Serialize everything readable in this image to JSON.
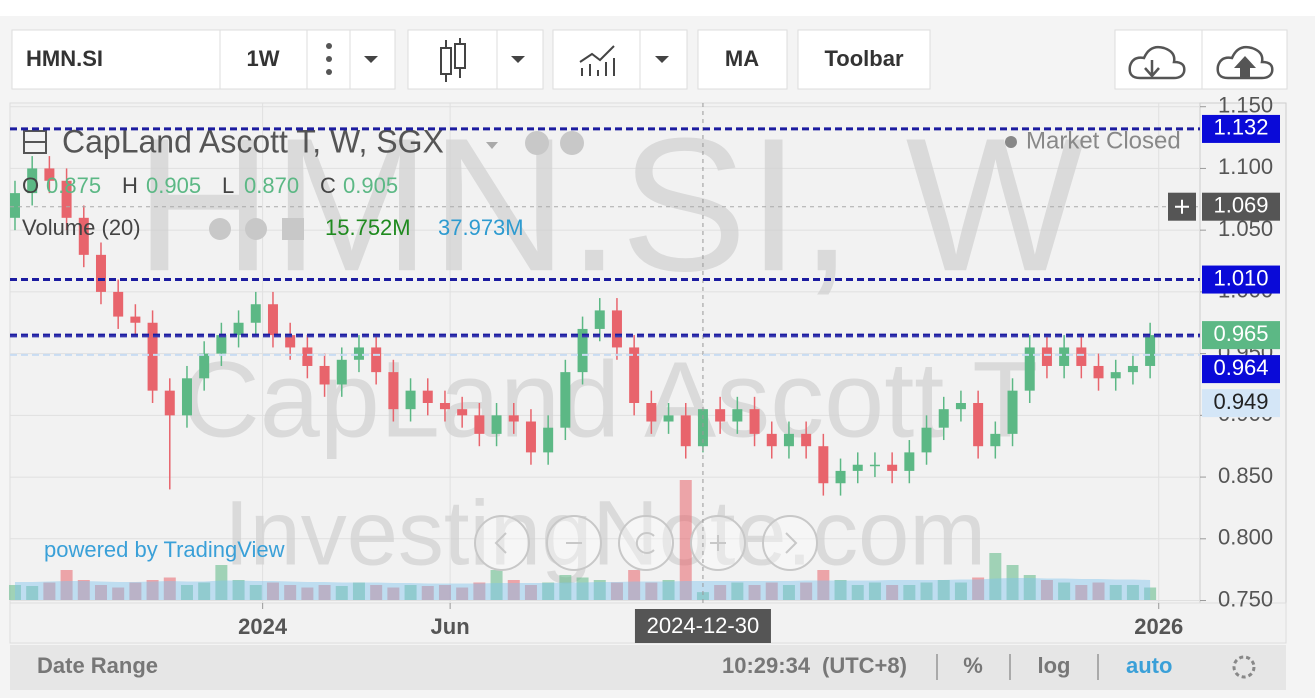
{
  "toolbar": {
    "symbol": "HMN.SI",
    "interval": "1W",
    "ma": "MA",
    "toolbar": "Toolbar"
  },
  "watermark": {
    "main": "HMN.SI, W",
    "name": "CapLand Ascott T",
    "site": "InvestingNote.com"
  },
  "legend": {
    "title": "CapLand Ascott T, W, SGX",
    "status": "Market Closed",
    "o_label": "O",
    "o": "0.875",
    "h_label": "H",
    "h": "0.905",
    "l_label": "L",
    "l": "0.870",
    "c_label": "C",
    "c": "0.905",
    "volume_label": "Volume (20)",
    "volume": "15.752M",
    "volume_ma": "37.973M"
  },
  "powered_by": "powered by TradingView",
  "footer": {
    "date_range": "Date Range",
    "time": "10:29:34",
    "timezone": "(UTC+8)",
    "percent": "%",
    "log": "log",
    "auto": "auto"
  },
  "chart_data": {
    "type": "candlestick",
    "up_color": "#5cb885",
    "down_color": "#e8646c",
    "open": [
      1.06,
      1.08,
      1.1,
      1.09,
      1.06,
      1.03,
      1.0,
      0.98,
      0.975,
      0.92,
      0.9,
      0.93,
      0.95,
      0.965,
      0.975,
      0.99,
      0.965,
      0.955,
      0.94,
      0.925,
      0.945,
      0.955,
      0.935,
      0.905,
      0.92,
      0.91,
      0.905,
      0.9,
      0.885,
      0.9,
      0.895,
      0.87,
      0.89,
      0.935,
      0.97,
      0.985,
      0.955,
      0.91,
      0.895,
      0.9,
      0.875,
      0.905,
      0.895,
      0.905,
      0.885,
      0.875,
      0.885,
      0.875,
      0.845,
      0.855,
      0.86,
      0.86,
      0.855,
      0.87,
      0.89,
      0.905,
      0.91,
      0.875,
      0.885,
      0.92,
      0.955,
      0.94,
      0.955,
      0.94,
      0.93,
      0.935,
      0.94
    ],
    "high": [
      1.09,
      1.11,
      1.11,
      1.1,
      1.07,
      1.04,
      1.01,
      0.99,
      0.985,
      0.93,
      0.94,
      0.96,
      0.975,
      0.985,
      1.0,
      1.0,
      0.975,
      0.965,
      0.95,
      0.955,
      0.965,
      0.965,
      0.945,
      0.93,
      0.93,
      0.92,
      0.915,
      0.91,
      0.91,
      0.91,
      0.905,
      0.9,
      0.945,
      0.98,
      0.995,
      0.995,
      0.965,
      0.92,
      0.91,
      0.91,
      0.905,
      0.915,
      0.915,
      0.915,
      0.895,
      0.895,
      0.895,
      0.885,
      0.865,
      0.87,
      0.87,
      0.87,
      0.88,
      0.9,
      0.915,
      0.92,
      0.92,
      0.895,
      0.93,
      0.965,
      0.965,
      0.965,
      0.965,
      0.95,
      0.945,
      0.95,
      0.975
    ],
    "low": [
      1.05,
      1.07,
      1.08,
      1.05,
      1.02,
      0.99,
      0.97,
      0.965,
      0.91,
      0.84,
      0.89,
      0.92,
      0.94,
      0.955,
      0.965,
      0.955,
      0.945,
      0.93,
      0.915,
      0.915,
      0.935,
      0.925,
      0.895,
      0.895,
      0.9,
      0.895,
      0.89,
      0.875,
      0.875,
      0.885,
      0.86,
      0.86,
      0.88,
      0.925,
      0.96,
      0.945,
      0.9,
      0.885,
      0.885,
      0.865,
      0.87,
      0.885,
      0.885,
      0.875,
      0.865,
      0.865,
      0.865,
      0.835,
      0.835,
      0.845,
      0.85,
      0.845,
      0.845,
      0.86,
      0.88,
      0.895,
      0.865,
      0.865,
      0.875,
      0.91,
      0.93,
      0.93,
      0.93,
      0.92,
      0.92,
      0.925,
      0.93
    ],
    "close": [
      1.08,
      1.1,
      1.09,
      1.06,
      1.03,
      1.0,
      0.98,
      0.975,
      0.92,
      0.9,
      0.93,
      0.95,
      0.965,
      0.975,
      0.99,
      0.965,
      0.955,
      0.94,
      0.925,
      0.945,
      0.955,
      0.935,
      0.905,
      0.92,
      0.91,
      0.905,
      0.9,
      0.885,
      0.9,
      0.895,
      0.87,
      0.89,
      0.935,
      0.97,
      0.985,
      0.955,
      0.91,
      0.895,
      0.9,
      0.875,
      0.905,
      0.895,
      0.905,
      0.885,
      0.875,
      0.885,
      0.875,
      0.845,
      0.855,
      0.86,
      0.86,
      0.855,
      0.87,
      0.89,
      0.905,
      0.91,
      0.875,
      0.885,
      0.92,
      0.955,
      0.94,
      0.955,
      0.94,
      0.93,
      0.935,
      0.94,
      0.965
    ],
    "volume": [
      30,
      28,
      35,
      60,
      40,
      30,
      25,
      35,
      40,
      45,
      30,
      35,
      70,
      40,
      30,
      35,
      30,
      25,
      30,
      28,
      35,
      30,
      25,
      30,
      28,
      30,
      25,
      35,
      60,
      40,
      30,
      35,
      50,
      45,
      40,
      35,
      60,
      35,
      40,
      240,
      15.752,
      30,
      35,
      30,
      35,
      30,
      35,
      60,
      40,
      30,
      35,
      30,
      30,
      35,
      40,
      35,
      45,
      94,
      70,
      50,
      40,
      35,
      30,
      35,
      30,
      30,
      25
    ],
    "volume_ma": [
      36,
      36,
      37,
      38,
      38,
      37,
      36,
      36,
      37,
      38,
      37,
      37,
      39,
      39,
      38,
      38,
      37,
      36,
      36,
      35,
      35,
      35,
      34,
      34,
      33,
      33,
      33,
      33,
      34,
      34,
      34,
      34,
      35,
      35,
      36,
      36,
      37,
      37,
      37,
      38,
      37.973,
      38,
      38,
      38,
      38,
      38,
      39,
      39,
      39,
      39,
      39,
      40,
      40,
      40,
      40,
      41,
      41,
      43,
      44,
      44,
      43,
      43,
      42,
      42,
      41,
      41,
      40
    ],
    "vlim": [
      0,
      300
    ],
    "xlim": [
      -0.29,
      68.9
    ],
    "xticks": [
      {
        "value": 14.4,
        "label": "2024"
      },
      {
        "value": 25.3,
        "label": "Jun"
      },
      {
        "value": 66.5,
        "label": "2026"
      }
    ],
    "ylim": [
      0.748,
      1.153
    ],
    "yticks": [
      {
        "value": 0.75,
        "label": "0.750"
      },
      {
        "value": 0.8,
        "label": "0.800"
      },
      {
        "value": 0.85,
        "label": "0.850"
      },
      {
        "value": 0.9,
        "label": "0.900"
      },
      {
        "value": 0.95,
        "label": "0.950"
      },
      {
        "value": 1.0,
        "label": "1.000"
      },
      {
        "value": 1.05,
        "label": "1.050"
      },
      {
        "value": 1.1,
        "label": "1.100"
      },
      {
        "value": 1.15,
        "label": "1.150"
      }
    ],
    "grid": true,
    "price_lines": [
      {
        "value": 1.132,
        "label": "1.132",
        "color": "#0a0ad8",
        "line": "#1c1ca0"
      },
      {
        "value": 1.01,
        "label": "1.010",
        "color": "#0a0ad8",
        "line": "#1c1ca0"
      },
      {
        "value": 0.965,
        "label": "0.965",
        "color": "#5cb885",
        "line": "#1c1ca0"
      },
      {
        "value": 0.964,
        "label": "0.964",
        "color": "#0a0ad8",
        "line": "#3a3ab0"
      },
      {
        "value": 0.949,
        "label": "0.949",
        "color": "#d4e6f7",
        "line": "#c8dcf2"
      }
    ],
    "crosshair": {
      "x": 40,
      "x_label": "2024-12-30",
      "y": 1.069,
      "y_label": "1.069"
    }
  }
}
